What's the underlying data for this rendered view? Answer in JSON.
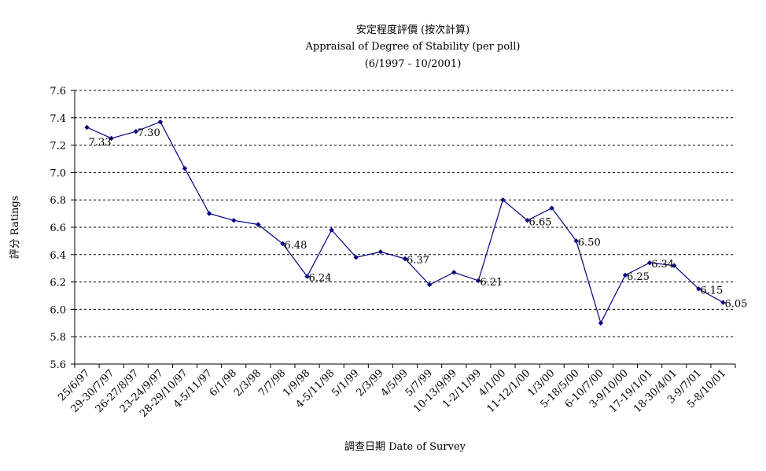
{
  "chart_data": {
    "type": "line",
    "title": "安定程度評價 (按次計算)",
    "subtitle": "Appraisal of Degree of Stability (per poll)",
    "subtitle2": "(6/1997 - 10/2001)",
    "xlabel": "調查日期 Date of Survey",
    "ylabel": "評分 Ratings",
    "ylim": [
      5.6,
      7.6
    ],
    "yticks": [
      "5.6",
      "5.8",
      "6.0",
      "6.2",
      "6.4",
      "6.6",
      "6.8",
      "7.0",
      "7.2",
      "7.4",
      "7.6"
    ],
    "grid": true,
    "color": "#00007f",
    "categories": [
      "25/6/97",
      "29-30/7/97",
      "26-27/8/97",
      "23-24/9/97",
      "28-29/10/97",
      "4-5/11/97",
      "6/1/98",
      "2/3/98",
      "7/7/98",
      "1/9/98",
      "4-5/11/98",
      "5/1/99",
      "2/3/99",
      "4/5/99",
      "5/7/99",
      "10-13/9/99",
      "1-2/11/99",
      "4/1/00",
      "11-12/1/00",
      "1/3/00",
      "5-18/5/00",
      "6-10/7/00",
      "3-9/10/00",
      "17-19/1/01",
      "18-30/4/01",
      "3-9/7/01",
      "5-8/10/01"
    ],
    "point_categories": [
      "25/6/97",
      "29-30/7/97",
      "26-27/8/97",
      "23-24/9/97",
      "28-29/10/97",
      "4-5/11/97",
      "6/1/98",
      "2/3/98",
      "7/7/98",
      "1/9/98",
      "4-5/11/98",
      "5/1/99",
      "2/3/99",
      "4/5/99",
      "5/7/99",
      "10-13/9/99",
      "1-2/11/99",
      "4/1/00",
      "11-12/1/00",
      "1/3/00",
      "5-18/5/00",
      "6-10/7/00",
      "3-9/10/00",
      "17-19/1/01",
      "18-30/4/01",
      "3-9/7/01",
      "5-8/10/01"
    ],
    "values": [
      7.33,
      7.25,
      7.3,
      7.37,
      7.03,
      6.7,
      6.65,
      6.62,
      6.48,
      6.24,
      6.58,
      6.38,
      6.42,
      6.37,
      6.18,
      6.27,
      6.21,
      6.8,
      6.65,
      6.74,
      6.5,
      5.9,
      6.25,
      6.34,
      6.32,
      6.15,
      6.05
    ],
    "data_labels": [
      {
        "index": 0,
        "text": "7.33"
      },
      {
        "index": 2,
        "text": "7.30"
      },
      {
        "index": 8,
        "text": "6.48"
      },
      {
        "index": 9,
        "text": "6.24"
      },
      {
        "index": 13,
        "text": "6.37"
      },
      {
        "index": 16,
        "text": "6.21"
      },
      {
        "index": 18,
        "text": "6.65"
      },
      {
        "index": 20,
        "text": "6.50"
      },
      {
        "index": 22,
        "text": "6.25"
      },
      {
        "index": 23,
        "text": "6.34"
      },
      {
        "index": 25,
        "text": "6.15"
      },
      {
        "index": 26,
        "text": "6.05"
      }
    ]
  }
}
